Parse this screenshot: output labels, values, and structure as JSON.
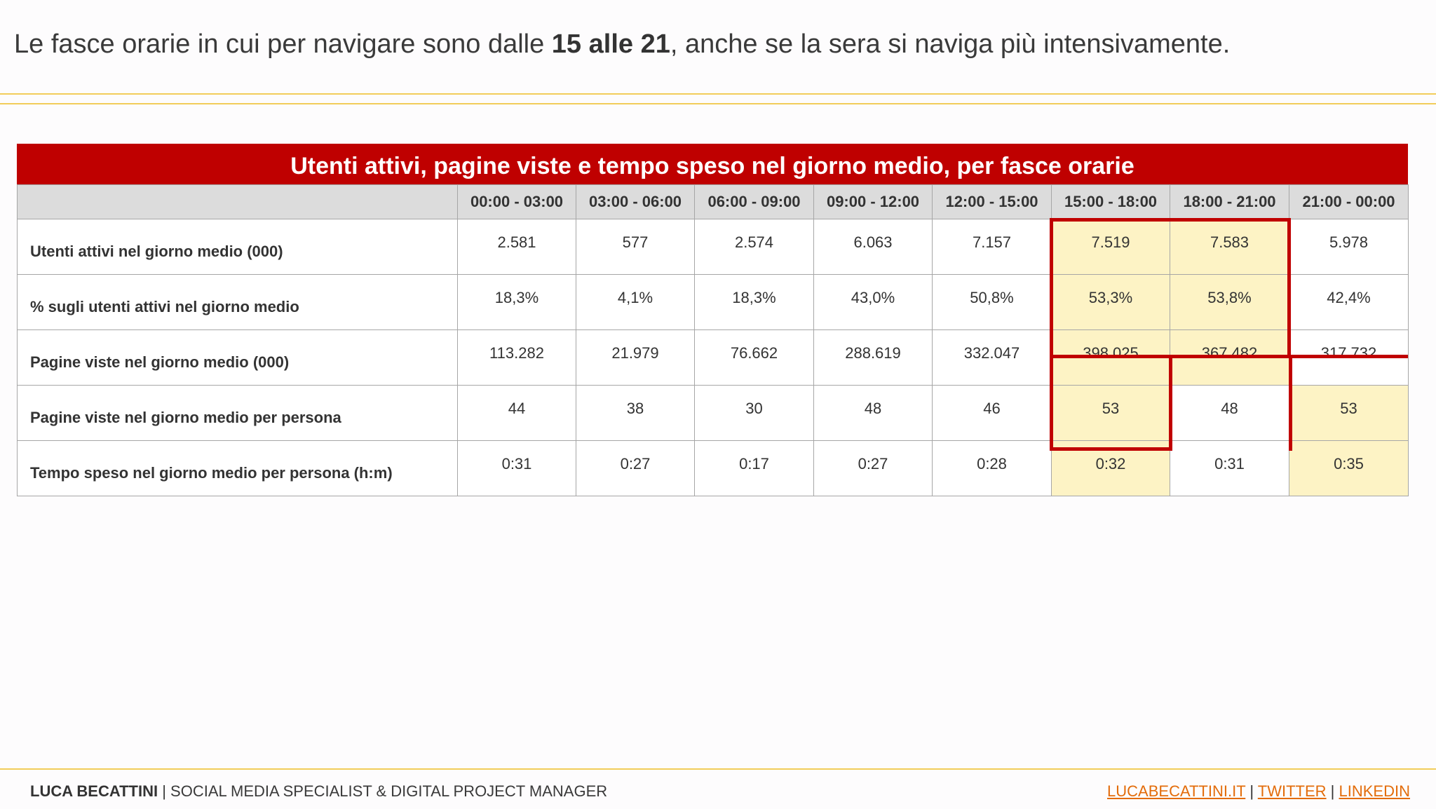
{
  "headline": {
    "before": "Le fasce orarie in cui per navigare sono dalle ",
    "bold": "15 alle 21",
    "after": ", anche se la sera si naviga più intensivamente."
  },
  "table": {
    "title": "Utenti attivi, pagine viste e tempo speso nel giorno medio, per fasce orarie",
    "headers": [
      "00:00 - 03:00",
      "03:00 - 06:00",
      "06:00 - 09:00",
      "09:00 - 12:00",
      "12:00 - 15:00",
      "15:00 - 18:00",
      "18:00 - 21:00",
      "21:00 - 00:00"
    ],
    "rows": [
      {
        "label": "Utenti attivi nel giorno medio (000)",
        "values": [
          "2.581",
          "577",
          "2.574",
          "6.063",
          "7.157",
          "7.519",
          "7.583",
          "5.978"
        ]
      },
      {
        "label": "% sugli utenti attivi nel giorno medio",
        "values": [
          "18,3%",
          "4,1%",
          "18,3%",
          "43,0%",
          "50,8%",
          "53,3%",
          "53,8%",
          "42,4%"
        ]
      },
      {
        "label": "Pagine viste nel giorno medio (000)",
        "values": [
          "113.282",
          "21.979",
          "76.662",
          "288.619",
          "332.047",
          "398.025",
          "367.482",
          "317.732"
        ]
      },
      {
        "label": "Pagine viste nel giorno medio per persona",
        "values": [
          "44",
          "38",
          "30",
          "48",
          "46",
          "53",
          "48",
          "53"
        ]
      },
      {
        "label": "Tempo speso nel giorno medio per persona (h:m)",
        "values": [
          "0:31",
          "0:27",
          "0:17",
          "0:27",
          "0:28",
          "0:32",
          "0:31",
          "0:35"
        ]
      }
    ],
    "highlight_fill": "#fdf3c5",
    "frame_color": "#c00000"
  },
  "footer": {
    "name": "LUCA BECATTINI",
    "separator": " | ",
    "role": "SOCIAL MEDIA SPECIALIST & DIGITAL PROJECT MANAGER",
    "links": [
      "LUCABECATTINI.IT",
      "TWITTER",
      "LINKEDIN"
    ]
  },
  "colors": {
    "brand_red": "#bf0000",
    "accent_gold": "#f2cd5a",
    "link_orange": "#e36c0a"
  }
}
